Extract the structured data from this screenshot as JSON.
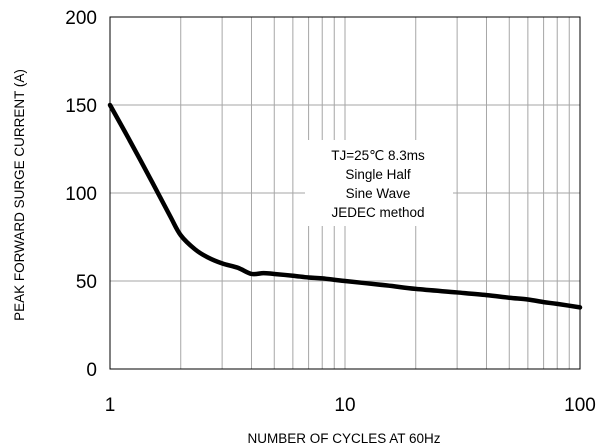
{
  "chart_data": {
    "type": "line",
    "title": "",
    "xlabel": "NUMBER OF CYCLES AT 60Hz",
    "ylabel": "PEAK FORWARD SURGE CURRENT (A)",
    "xscale": "log",
    "xlim": [
      1,
      100
    ],
    "ylim": [
      0,
      200
    ],
    "x_ticks": [
      "1",
      "10",
      "100"
    ],
    "y_ticks": [
      "0",
      "50",
      "100",
      "150",
      "200"
    ],
    "grid": true,
    "annotation_lines": [
      "TJ=25℃ 8.3ms",
      "Single Half",
      "Sine Wave",
      "JEDEC method"
    ],
    "series": [
      {
        "color": "#000000",
        "x": [
          1,
          1.2,
          1.5,
          1.8,
          2,
          2.3,
          2.6,
          3,
          3.5,
          4,
          4.5,
          5,
          6,
          7,
          8,
          10,
          15,
          20,
          30,
          40,
          50,
          60,
          70,
          80,
          100
        ],
        "y": [
          150,
          131,
          107,
          87,
          76,
          68,
          63.5,
          60,
          57.5,
          54,
          54.5,
          54,
          53,
          52,
          51.5,
          50,
          47.5,
          45.5,
          43.5,
          42,
          40.5,
          39.5,
          38,
          37,
          35
        ]
      }
    ]
  }
}
